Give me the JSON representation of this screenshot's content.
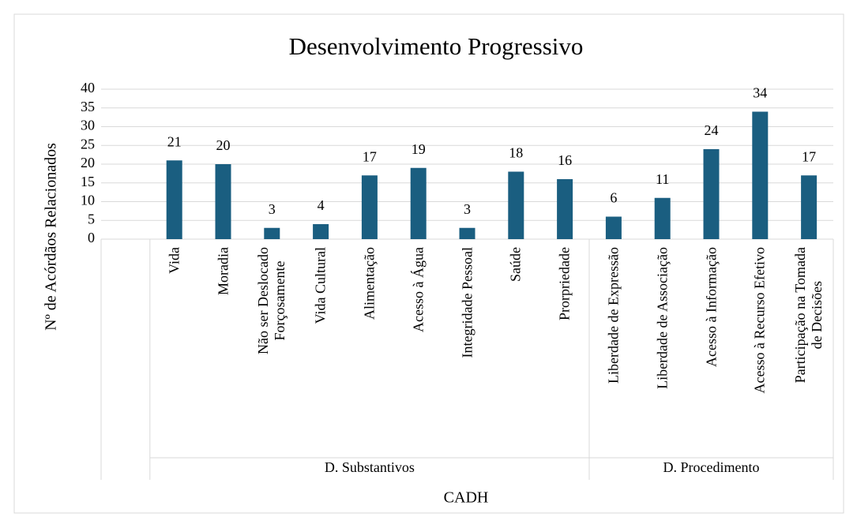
{
  "chart_data": {
    "type": "bar",
    "title": "Desenvolvimento Progressivo",
    "y_label": "Nº de Acórdãos Relacionados",
    "x_label": "CADH",
    "categories": [
      null,
      "Vida",
      "Moradia",
      "Não ser Deslocado\nForçosamente",
      "Vida Cultural",
      "Alimentação",
      "Acesso à Água",
      "Integridade Pessoal",
      "Saúde",
      "Prorpriedade",
      "Liberdade de Expressão",
      "Liberdade de Associação",
      "Acesso à Informação",
      "Acesso à Recurso Efetivo",
      "Participação na Tomada\nde Decisões"
    ],
    "values": [
      null,
      21,
      20,
      3,
      4,
      17,
      19,
      3,
      18,
      16,
      6,
      11,
      24,
      34,
      17
    ],
    "groups": [
      {
        "name": "D. Substantivos",
        "start": 1,
        "end": 9
      },
      {
        "name": "D. Procedimento",
        "start": 10,
        "end": 14
      }
    ],
    "color": "#1a5e80",
    "ylim": [
      0,
      40
    ],
    "yticks": [
      0,
      5,
      10,
      15,
      20,
      25,
      30,
      35,
      40
    ],
    "grid": true
  }
}
